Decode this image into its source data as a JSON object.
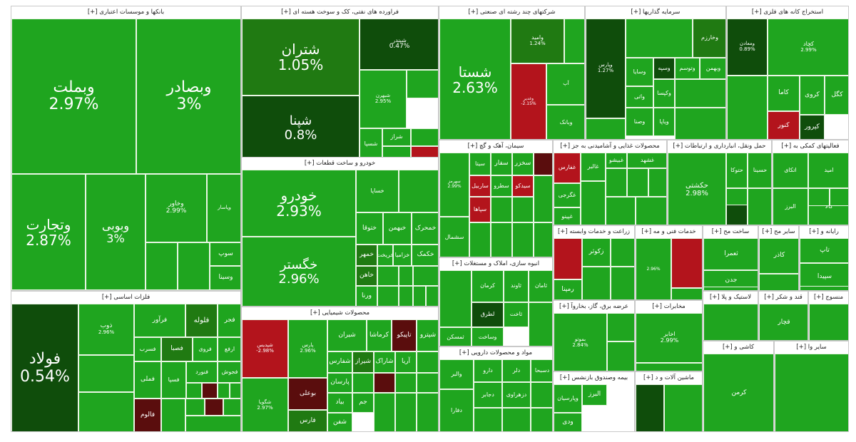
{
  "colors": {
    "up": "#1fa51f",
    "up_mid": "#2c9a1c",
    "up_dark": "#207a12",
    "up_deep": "#0f4d0b",
    "down": "#b3141c",
    "down_dark": "#5a0d0d",
    "flat": "#ffffff"
  },
  "chart_data": {
    "type": "treemap",
    "sectors": [
      {
        "name": "بانکها و موسسات اعتباری [+]",
        "stocks": [
          {
            "symbol": "وبملت",
            "change": "2.97%"
          },
          {
            "symbol": "وبصادر",
            "change": "3%"
          },
          {
            "symbol": "وتجارت",
            "change": "2.87%"
          },
          {
            "symbol": "وبوبی",
            "change": "3%"
          },
          {
            "symbol": "وخاور",
            "change": "2.99%"
          },
          {
            "symbol": "وپاسار",
            "change": ""
          },
          {
            "symbol": "",
            "change": ""
          },
          {
            "symbol": "",
            "change": ""
          },
          {
            "symbol": "سوپ",
            "change": ""
          },
          {
            "symbol": "وسینا",
            "change": ""
          }
        ]
      },
      {
        "name": "فلزات اساسی [+]",
        "stocks": [
          {
            "symbol": "فولاد",
            "change": "0.54%"
          },
          {
            "symbol": "ذوب",
            "change": "2.96%"
          },
          {
            "symbol": "",
            "change": ""
          },
          {
            "symbol": "",
            "change": ""
          },
          {
            "symbol": "فالوم",
            "change": ""
          },
          {
            "symbol": "فملی",
            "change": ""
          },
          {
            "symbol": "فلوله",
            "change": ""
          },
          {
            "symbol": "فجر",
            "change": ""
          },
          {
            "symbol": "فصبا",
            "change": ""
          },
          {
            "symbol": "فسرب",
            "change": ""
          },
          {
            "symbol": "فروی",
            "change": ""
          },
          {
            "symbol": "ارفع",
            "change": ""
          },
          {
            "symbol": "فرآور",
            "change": ""
          },
          {
            "symbol": "فسپا",
            "change": ""
          },
          {
            "symbol": "فنورد",
            "change": ""
          },
          {
            "symbol": "فجوش",
            "change": ""
          },
          {
            "symbol": "",
            "change": ""
          },
          {
            "symbol": "",
            "change": ""
          },
          {
            "symbol": "",
            "change": ""
          },
          {
            "symbol": "",
            "change": ""
          },
          {
            "symbol": "",
            "change": ""
          },
          {
            "symbol": "",
            "change": ""
          },
          {
            "symbol": "",
            "change": ""
          },
          {
            "symbol": "",
            "change": ""
          },
          {
            "symbol": "",
            "change": ""
          }
        ]
      },
      {
        "name": "فراورده های نفتی، کک و سوخت هسته ای [+]",
        "stocks": [
          {
            "symbol": "شتران",
            "change": "1.05%"
          },
          {
            "symbol": "شبندر",
            "change": "0.47%"
          },
          {
            "symbol": "شپنا",
            "change": "0.8%"
          },
          {
            "symbol": "شبهرن",
            "change": "2.95%"
          },
          {
            "symbol": "شاوان",
            "change": ""
          },
          {
            "symbol": "شسپا",
            "change": ""
          },
          {
            "symbol": "شراز",
            "change": ""
          },
          {
            "symbol": "",
            "change": ""
          },
          {
            "symbol": "",
            "change": ""
          },
          {
            "symbol": "",
            "change": ""
          }
        ]
      },
      {
        "name": "خودرو و ساخت قطعات [+]",
        "stocks": [
          {
            "symbol": "خودرو",
            "change": "2.93%"
          },
          {
            "symbol": "خگستر",
            "change": "2.96%"
          },
          {
            "symbol": "خساپا",
            "change": ""
          },
          {
            "symbol": "خپارس",
            "change": ""
          },
          {
            "symbol": "ختوقا",
            "change": ""
          },
          {
            "symbol": "خبهمن",
            "change": ""
          },
          {
            "symbol": "خمحرک",
            "change": ""
          },
          {
            "symbol": "خکمک",
            "change": ""
          },
          {
            "symbol": "خمهر",
            "change": ""
          },
          {
            "symbol": "خاهن",
            "change": ""
          },
          {
            "symbol": "خریخت",
            "change": ""
          },
          {
            "symbol": "ورنا",
            "change": ""
          },
          {
            "symbol": "خزامیا",
            "change": ""
          },
          {
            "symbol": "خچرخش",
            "change": ""
          },
          {
            "symbol": "",
            "change": ""
          },
          {
            "symbol": "",
            "change": ""
          },
          {
            "symbol": "",
            "change": ""
          },
          {
            "symbol": "",
            "change": ""
          },
          {
            "symbol": "",
            "change": ""
          },
          {
            "symbol": "",
            "change": ""
          }
        ]
      },
      {
        "name": "محصولات شیمیایی [+]",
        "stocks": [
          {
            "symbol": "شپدیس",
            "change": "-2.98%"
          },
          {
            "symbol": "پارس",
            "change": "2.96%"
          },
          {
            "symbol": "شیران",
            "change": ""
          },
          {
            "symbol": "کرماشا",
            "change": ""
          },
          {
            "symbol": "تاپیکو",
            "change": ""
          },
          {
            "symbol": "شپترو",
            "change": ""
          },
          {
            "symbol": "بوعلی",
            "change": ""
          },
          {
            "symbol": "شگویا",
            "change": "2.97%"
          },
          {
            "symbol": "فارس",
            "change": ""
          },
          {
            "symbol": "شیراز",
            "change": ""
          },
          {
            "symbol": "شفارس",
            "change": ""
          },
          {
            "symbol": "آریا",
            "change": ""
          },
          {
            "symbol": "شاراک",
            "change": ""
          },
          {
            "symbol": "شصدف",
            "change": ""
          },
          {
            "symbol": "جم",
            "change": ""
          },
          {
            "symbol": "شفن",
            "change": ""
          },
          {
            "symbol": "پارسان",
            "change": ""
          },
          {
            "symbol": "بیاد",
            "change": ""
          },
          {
            "symbol": "",
            "change": ""
          },
          {
            "symbol": "",
            "change": ""
          },
          {
            "symbol": "",
            "change": ""
          },
          {
            "symbol": "",
            "change": ""
          },
          {
            "symbol": "",
            "change": ""
          },
          {
            "symbol": "",
            "change": ""
          },
          {
            "symbol": "",
            "change": ""
          }
        ]
      },
      {
        "name": "شرکتهای چند رشته ای صنعتی [+]",
        "stocks": [
          {
            "symbol": "شستا",
            "change": "2.63%"
          },
          {
            "symbol": "وامید",
            "change": "1.24%"
          },
          {
            "symbol": "وغدیر",
            "change": "-2.15%"
          },
          {
            "symbol": "آپ",
            "change": ""
          },
          {
            "symbol": "وبانک",
            "change": ""
          },
          {
            "symbol": "",
            "change": ""
          }
        ]
      },
      {
        "name": "سیمان، آهک و گچ [+]",
        "stocks": [
          {
            "symbol": "سهرمز",
            "change": "2.99%"
          },
          {
            "symbol": "سیتا",
            "change": ""
          },
          {
            "symbol": "سفار",
            "change": ""
          },
          {
            "symbol": "سخزر",
            "change": ""
          },
          {
            "symbol": "سصفها",
            "change": ""
          },
          {
            "symbol": "ساربیل",
            "change": ""
          },
          {
            "symbol": "سطرو",
            "change": ""
          },
          {
            "symbol": "سیدکو",
            "change": ""
          },
          {
            "symbol": "سپاها",
            "change": ""
          },
          {
            "symbol": "سشمال",
            "change": ""
          },
          {
            "symbol": "",
            "change": ""
          },
          {
            "symbol": "",
            "change": ""
          },
          {
            "symbol": "",
            "change": ""
          },
          {
            "symbol": "",
            "change": ""
          },
          {
            "symbol": "",
            "change": ""
          },
          {
            "symbol": "",
            "change": ""
          },
          {
            "symbol": "",
            "change": ""
          }
        ]
      },
      {
        "name": "انبوه سازی، املاک و مستغلات [+]",
        "stocks": [
          {
            "symbol": "ثامان",
            "change": ""
          },
          {
            "symbol": "ثاوند",
            "change": ""
          },
          {
            "symbol": "کرمان",
            "change": ""
          },
          {
            "symbol": "ثاخت",
            "change": ""
          },
          {
            "symbol": "لطرق",
            "change": ""
          },
          {
            "symbol": "وساخت",
            "change": ""
          },
          {
            "symbol": "ثمسکن",
            "change": ""
          },
          {
            "symbol": "",
            "change": ""
          },
          {
            "symbol": "",
            "change": ""
          }
        ]
      },
      {
        "name": "مواد و محصولات دارویی [+]",
        "stocks": [
          {
            "symbol": "والبر",
            "change": ""
          },
          {
            "symbol": "دارو",
            "change": ""
          },
          {
            "symbol": "دلر",
            "change": ""
          },
          {
            "symbol": "دسبحا",
            "change": ""
          },
          {
            "symbol": "دفارا",
            "change": ""
          },
          {
            "symbol": "دجابر",
            "change": ""
          },
          {
            "symbol": "دزهراوی",
            "change": ""
          },
          {
            "symbol": "",
            "change": ""
          },
          {
            "symbol": "",
            "change": ""
          },
          {
            "symbol": "",
            "change": ""
          },
          {
            "symbol": "",
            "change": ""
          }
        ]
      },
      {
        "name": "سرمایه گذاریها [+]",
        "stocks": [
          {
            "symbol": "وپارس",
            "change": "1.27%"
          },
          {
            "symbol": "وخارزم",
            "change": ""
          },
          {
            "symbol": "وسپه",
            "change": ""
          },
          {
            "symbol": "وسایا",
            "change": ""
          },
          {
            "symbol": "وتوسم",
            "change": ""
          },
          {
            "symbol": "وبهمن",
            "change": ""
          },
          {
            "symbol": "واتی",
            "change": ""
          },
          {
            "symbol": "وکپسا",
            "change": ""
          },
          {
            "symbol": "وصنا",
            "change": ""
          },
          {
            "symbol": "ویاپا",
            "change": ""
          },
          {
            "symbol": "",
            "change": ""
          },
          {
            "symbol": "",
            "change": ""
          },
          {
            "symbol": "",
            "change": ""
          },
          {
            "symbol": "",
            "change": ""
          }
        ]
      },
      {
        "name": "استخراج کانه های فلزی [+]",
        "stocks": [
          {
            "symbol": "ومعادن",
            "change": "0.89%"
          },
          {
            "symbol": "کچاد",
            "change": "2.99%"
          },
          {
            "symbol": "کگل",
            "change": ""
          },
          {
            "symbol": "کروی",
            "change": ""
          },
          {
            "symbol": "کاما",
            "change": ""
          },
          {
            "symbol": "کنور",
            "change": ""
          },
          {
            "symbol": "کپرور",
            "change": ""
          },
          {
            "symbol": "",
            "change": ""
          }
        ]
      },
      {
        "name": "محصولات غذایی و آشامیدنی به جز [+]",
        "stocks": [
          {
            "symbol": "غفارس",
            "change": ""
          },
          {
            "symbol": "غگرجی",
            "change": ""
          },
          {
            "symbol": "غپینو",
            "change": ""
          },
          {
            "symbol": "غالبر",
            "change": ""
          },
          {
            "symbol": "غبیشو",
            "change": ""
          },
          {
            "symbol": "غشهد",
            "change": ""
          },
          {
            "symbol": "",
            "change": ""
          },
          {
            "symbol": "",
            "change": ""
          },
          {
            "symbol": "",
            "change": ""
          },
          {
            "symbol": "",
            "change": ""
          },
          {
            "symbol": "",
            "change": ""
          },
          {
            "symbol": "",
            "change": ""
          }
        ]
      },
      {
        "name": "حمل ونقل، انبارداری و ارتباطات [+]",
        "stocks": [
          {
            "symbol": "حکشتی",
            "change": "2.98%"
          },
          {
            "symbol": "حتوکا",
            "change": ""
          },
          {
            "symbol": "حسینا",
            "change": ""
          },
          {
            "symbol": "",
            "change": ""
          },
          {
            "symbol": "",
            "change": ""
          },
          {
            "symbol": "",
            "change": ""
          }
        ]
      },
      {
        "name": "فعالیتهای کمکی به [+]",
        "stocks": [
          {
            "symbol": "اتکای",
            "change": ""
          },
          {
            "symbol": "امید",
            "change": ""
          },
          {
            "symbol": "البرز",
            "change": ""
          },
          {
            "symbol": "کالا",
            "change": ""
          },
          {
            "symbol": "",
            "change": ""
          },
          {
            "symbol": "",
            "change": ""
          }
        ]
      },
      {
        "name": "زراعت و خدمات وابسته [+]",
        "stocks": [
          {
            "symbol": "زاگرس",
            "change": ""
          },
          {
            "symbol": "زکوثر",
            "change": ""
          },
          {
            "symbol": "رمپنا",
            "change": ""
          },
          {
            "symbol": "",
            "change": ""
          },
          {
            "symbol": "",
            "change": ""
          },
          {
            "symbol": "",
            "change": ""
          }
        ]
      },
      {
        "name": "خدمات فنی و مه [+]",
        "stocks": [
          {
            "symbol": "",
            "change": "2.96%"
          },
          {
            "symbol": "",
            "change": ""
          },
          {
            "symbol": "",
            "change": ""
          }
        ]
      },
      {
        "name": "ساخت مح [+]",
        "stocks": [
          {
            "symbol": "ثعمرا",
            "change": ""
          },
          {
            "symbol": "جدن",
            "change": ""
          },
          {
            "symbol": "",
            "change": ""
          }
        ]
      },
      {
        "name": "سایر مح [+]",
        "stocks": [
          {
            "symbol": "کاذر",
            "change": ""
          },
          {
            "symbol": "",
            "change": ""
          }
        ]
      },
      {
        "name": "رایانه و [+]",
        "stocks": [
          {
            "symbol": "تاپ",
            "change": ""
          },
          {
            "symbol": "سپیدا",
            "change": ""
          },
          {
            "symbol": "",
            "change": ""
          }
        ]
      },
      {
        "name": "عرضه برق، گاز، بخاروآ [+]",
        "stocks": [
          {
            "symbol": "بموتو",
            "change": "2.84%"
          },
          {
            "symbol": "",
            "change": ""
          },
          {
            "symbol": "",
            "change": ""
          }
        ]
      },
      {
        "name": "مخابرات [+]",
        "stocks": [
          {
            "symbol": "اخابر",
            "change": "2.99%"
          },
          {
            "symbol": "",
            "change": ""
          }
        ]
      },
      {
        "name": "بیمه وصندوق بازنشس [+]",
        "stocks": [
          {
            "symbol": "البرز",
            "change": ""
          },
          {
            "symbol": "وپارسیان",
            "change": ""
          },
          {
            "symbol": "ودی",
            "change": ""
          }
        ]
      },
      {
        "name": "ماشین آلات و د [+]",
        "stocks": [
          {
            "symbol": "",
            "change": ""
          },
          {
            "symbol": "",
            "change": ""
          }
        ]
      },
      {
        "name": "لاستیک و پلا [+]",
        "stocks": [
          {
            "symbol": "",
            "change": ""
          }
        ]
      },
      {
        "name": "قند و شکر [+]",
        "stocks": [
          {
            "symbol": "قچار",
            "change": ""
          }
        ]
      },
      {
        "name": "منسوج [+]",
        "stocks": [
          {
            "symbol": "",
            "change": ""
          }
        ]
      },
      {
        "name": "کاشی و [+]",
        "stocks": [
          {
            "symbol": "کرمن",
            "change": ""
          }
        ]
      },
      {
        "name": "سایر وا [+]",
        "stocks": [
          {
            "symbol": "",
            "change": ""
          }
        ]
      }
    ]
  },
  "tiles": [
    {
      "sector": "banks",
      "header": "بانکها و موسسات اعتباری [+]"
    },
    {
      "sector": "metals",
      "header": "فلزات اساسی [+]"
    }
  ]
}
